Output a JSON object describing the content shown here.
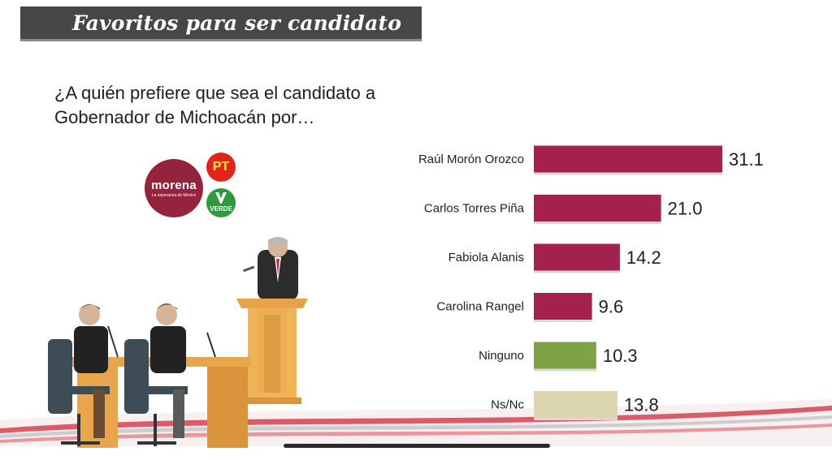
{
  "header": {
    "title": "Favoritos para ser candidato"
  },
  "question": {
    "line1": "¿A quién prefiere que sea el candidato a",
    "line2": "Gobernador de Michoacán por…"
  },
  "logos": {
    "morena_name": "morena",
    "morena_slogan": "La esperanza de México",
    "pt_label": "PT",
    "verde_label": "VERDE"
  },
  "colors": {
    "primary_bar": "#a3204f",
    "green_bar": "#7da346",
    "beige_bar": "#dbd6b0",
    "header": "#474747"
  },
  "chart_data": {
    "type": "bar",
    "orientation": "horizontal",
    "categories": [
      "Raúl Morón Orozco",
      "Carlos Torres Piña",
      "Fabiola Alanis",
      "Carolina Rangel",
      "Ninguno",
      "Ns/Nc"
    ],
    "values": [
      31.1,
      21.0,
      14.2,
      9.6,
      10.3,
      13.8
    ],
    "value_labels": [
      "31.1",
      "21.0",
      "14.2",
      "9.6",
      "10.3",
      "13.8"
    ],
    "bar_colors": [
      "#a3204f",
      "#a3204f",
      "#a3204f",
      "#a3204f",
      "#7da346",
      "#dbd6b0"
    ],
    "title": "",
    "xlabel": "",
    "ylabel": "",
    "xlim": [
      0,
      31.1
    ],
    "grid": false,
    "legend": "none"
  }
}
